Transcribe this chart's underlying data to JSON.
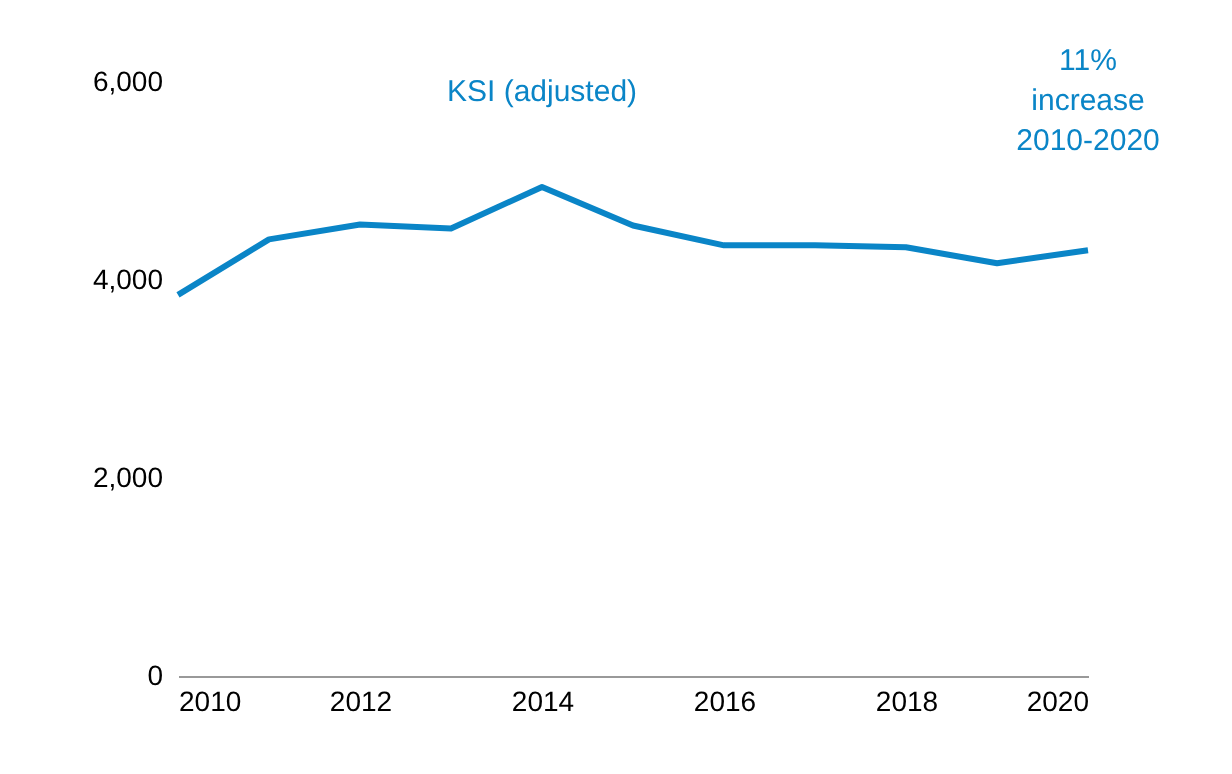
{
  "chart_data": {
    "type": "line",
    "x": [
      2010,
      2011,
      2012,
      2013,
      2014,
      2015,
      2016,
      2017,
      2018,
      2019,
      2020
    ],
    "series": [
      {
        "name": "KSI (adjusted)",
        "color": "#0a85c7",
        "values": [
          3850,
          4410,
          4560,
          4520,
          4940,
          4550,
          4350,
          4350,
          4330,
          4170,
          4300
        ]
      }
    ],
    "xlim": [
      2010,
      2020
    ],
    "xticks": [
      2010,
      2012,
      2014,
      2016,
      2018,
      2020
    ],
    "ylim": [
      0,
      6000
    ],
    "yticks": [
      0,
      {
        "value": 2000,
        "label": "2,000"
      },
      {
        "value": 4000,
        "label": "4,000"
      },
      {
        "value": 6000,
        "label": "6,000"
      }
    ],
    "grid": false,
    "marker": "none",
    "line_style": "solid",
    "annotations": [
      "11% increase 2010-2020"
    ]
  }
}
